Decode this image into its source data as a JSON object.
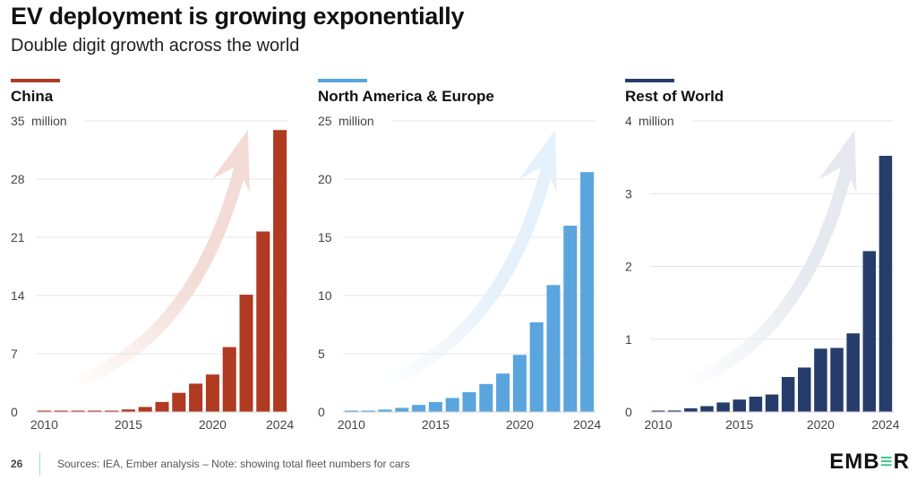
{
  "header": {
    "title": "EV deployment is growing exponentially",
    "subtitle": "Double digit growth across the world"
  },
  "footer": {
    "page_number": "26",
    "source": "Sources: IEA, Ember analysis – Note: showing total fleet numbers for cars",
    "logo": {
      "part1": "EMB",
      "part2": "≡",
      "part3": "R"
    },
    "logo_text": "EMBER"
  },
  "chart_data": [
    {
      "type": "bar",
      "title": "China",
      "accent_color": "#b03a22",
      "arrow_color": "#f3dcd6",
      "unit_label": "million",
      "xlabel": "",
      "ylabel": "million",
      "categories": [
        "2010",
        "2011",
        "2012",
        "2013",
        "2014",
        "2015",
        "2016",
        "2017",
        "2018",
        "2019",
        "2020",
        "2021",
        "2022",
        "2023",
        "2024"
      ],
      "values": [
        0.05,
        0.05,
        0.05,
        0.05,
        0.1,
        0.3,
        0.6,
        1.2,
        2.3,
        3.4,
        4.5,
        7.8,
        14.1,
        21.7,
        33.9
      ],
      "ylim": [
        0,
        35
      ],
      "yticks": [
        0,
        7,
        14,
        21,
        28,
        35
      ],
      "xtick_labels": [
        "2010",
        "2015",
        "2020",
        "2024"
      ],
      "grid": true,
      "legend": "none"
    },
    {
      "type": "bar",
      "title": "North America & Europe",
      "accent_color": "#5aa5de",
      "arrow_color": "#e4f0fa",
      "unit_label": "million",
      "xlabel": "",
      "ylabel": "million",
      "categories": [
        "2010",
        "2011",
        "2012",
        "2013",
        "2014",
        "2015",
        "2016",
        "2017",
        "2018",
        "2019",
        "2020",
        "2021",
        "2022",
        "2023",
        "2024"
      ],
      "values": [
        0.05,
        0.1,
        0.2,
        0.35,
        0.6,
        0.85,
        1.2,
        1.7,
        2.4,
        3.3,
        4.9,
        7.7,
        10.9,
        16.0,
        20.6
      ],
      "ylim": [
        0,
        25
      ],
      "yticks": [
        0,
        5,
        10,
        15,
        20,
        25
      ],
      "xtick_labels": [
        "2010",
        "2015",
        "2020",
        "2024"
      ],
      "grid": true,
      "legend": "none"
    },
    {
      "type": "bar",
      "title": "Rest of World",
      "accent_color": "#263d6b",
      "arrow_color": "#e6e9ef",
      "unit_label": "million",
      "xlabel": "",
      "ylabel": "million",
      "categories": [
        "2010",
        "2011",
        "2012",
        "2013",
        "2014",
        "2015",
        "2016",
        "2017",
        "2018",
        "2019",
        "2020",
        "2021",
        "2022",
        "2023",
        "2024"
      ],
      "values": [
        0.01,
        0.02,
        0.05,
        0.08,
        0.13,
        0.17,
        0.21,
        0.24,
        0.48,
        0.61,
        0.87,
        0.88,
        1.08,
        2.21,
        3.52
      ],
      "ylim": [
        0,
        4
      ],
      "yticks": [
        0,
        1,
        2,
        3,
        4
      ],
      "xtick_labels": [
        "2010",
        "2015",
        "2020",
        "2024"
      ],
      "grid": true,
      "legend": "none"
    }
  ]
}
